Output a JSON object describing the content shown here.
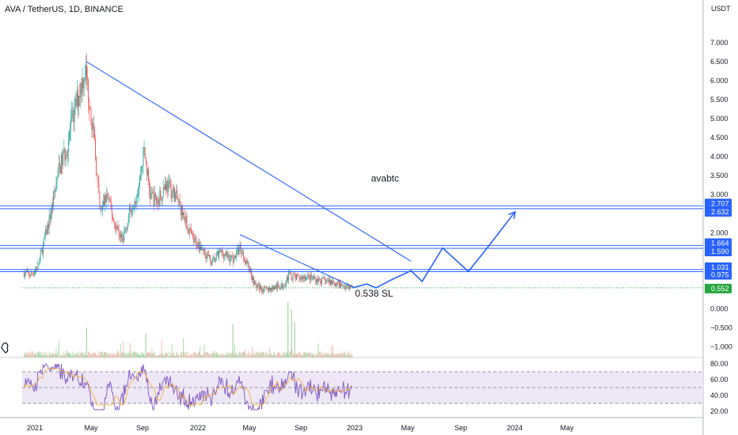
{
  "chart_data": {
    "type": "candlestick",
    "symbol": "AVA / TetherUS, 1D, BINANCE",
    "currency": "USDT",
    "y_ticks": [
      7.0,
      6.5,
      6.0,
      5.5,
      5.0,
      4.5,
      4.0,
      3.5,
      3.0,
      2.5,
      2.0,
      1.5,
      1.0,
      0.5,
      0.0,
      -0.5,
      -1.0
    ],
    "y_tick_labels": [
      "7.000",
      "6.500",
      "6.000",
      "5.500",
      "5.000",
      "4.500",
      "4.000",
      "3.500",
      "3.000",
      "2.500",
      "2.000",
      "1.500",
      "1.000",
      "0.500",
      "0.000",
      "−0.500",
      "−1.000"
    ],
    "ylim": [
      -1.2,
      7.5
    ],
    "x_labels": [
      "2021",
      "May",
      "Sep",
      "2022",
      "May",
      "Sep",
      "2023",
      "May",
      "Sep",
      "2024",
      "May"
    ],
    "price_path": [
      [
        "2020-12-05",
        0.95
      ],
      [
        "2020-12-20",
        0.88
      ],
      [
        "2021-01-05",
        1.1
      ],
      [
        "2021-01-20",
        1.8
      ],
      [
        "2021-02-05",
        2.6
      ],
      [
        "2021-02-20",
        3.6
      ],
      [
        "2021-03-10",
        4.2
      ],
      [
        "2021-03-25",
        5.0
      ],
      [
        "2021-04-10",
        5.8
      ],
      [
        "2021-04-22",
        6.3
      ],
      [
        "2021-05-05",
        5.2
      ],
      [
        "2021-05-15",
        4.0
      ],
      [
        "2021-05-25",
        2.5
      ],
      [
        "2021-06-10",
        3.0
      ],
      [
        "2021-06-25",
        2.3
      ],
      [
        "2021-07-15",
        1.8
      ],
      [
        "2021-08-01",
        2.6
      ],
      [
        "2021-08-20",
        3.2
      ],
      [
        "2021-09-01",
        4.2
      ],
      [
        "2021-09-15",
        3.0
      ],
      [
        "2021-10-01",
        2.8
      ],
      [
        "2021-10-20",
        3.3
      ],
      [
        "2021-11-10",
        3.0
      ],
      [
        "2021-12-01",
        2.4
      ],
      [
        "2021-12-20",
        1.8
      ],
      [
        "2022-01-10",
        1.6
      ],
      [
        "2022-02-01",
        1.2
      ],
      [
        "2022-02-20",
        1.5
      ],
      [
        "2022-03-20",
        1.3
      ],
      [
        "2022-04-05",
        1.6
      ],
      [
        "2022-04-25",
        1.1
      ],
      [
        "2022-05-10",
        0.6
      ],
      [
        "2022-06-01",
        0.5
      ],
      [
        "2022-06-20",
        0.55
      ],
      [
        "2022-07-10",
        0.6
      ],
      [
        "2022-07-25",
        0.9
      ],
      [
        "2022-08-10",
        0.8
      ],
      [
        "2022-09-01",
        0.85
      ],
      [
        "2022-10-01",
        0.75
      ],
      [
        "2022-11-01",
        0.7
      ],
      [
        "2022-11-20",
        0.6
      ],
      [
        "2022-12-15",
        0.56
      ]
    ],
    "rsi": {
      "y_ticks": [
        80,
        60,
        40,
        20
      ],
      "y_tick_labels": [
        "80.00",
        "60.00",
        "40.00",
        "20.00"
      ],
      "ylim": [
        15,
        85
      ],
      "band": [
        30,
        70
      ],
      "midline": 50
    },
    "trendlines": [
      {
        "from": [
          "2021-04-25",
          6.5
        ],
        "to": [
          "2023-04-25",
          1.25
        ]
      },
      {
        "from": [
          "2022-04-05",
          1.95
        ],
        "to": [
          "2022-12-20",
          0.55
        ]
      }
    ],
    "projection": [
      [
        "2022-12-15",
        0.55
      ],
      [
        "2023-01-15",
        0.65
      ],
      [
        "2023-02-05",
        0.55
      ],
      [
        "2023-03-15",
        0.78
      ],
      [
        "2023-04-25",
        1.0
      ],
      [
        "2023-05-20",
        0.72
      ],
      [
        "2023-07-05",
        1.6
      ],
      [
        "2023-09-01",
        0.98
      ],
      [
        "2023-10-20",
        1.7
      ],
      [
        "2023-12-15",
        2.55
      ]
    ],
    "horizontal_levels": [
      2.707,
      2.632,
      1.664,
      1.59,
      1.031,
      0.975
    ],
    "badges": [
      {
        "label": "2.707",
        "value": 2.707,
        "color": "#2962ff"
      },
      {
        "label": "2.632",
        "value": 2.632,
        "color": "#2962ff"
      },
      {
        "label": "1.664",
        "value": 1.664,
        "color": "#2962ff"
      },
      {
        "label": "1.590",
        "value": 1.59,
        "color": "#2962ff"
      },
      {
        "label": "1.031",
        "value": 1.031,
        "color": "#2962ff"
      },
      {
        "label": "0.975",
        "value": 0.975,
        "color": "#2962ff"
      },
      {
        "label": "0.552",
        "value": 0.552,
        "color": "#26a641"
      }
    ],
    "last_price": 0.552,
    "annotations": [
      {
        "text": "avabtc",
        "date": "2023-01-25",
        "value": 3.35
      },
      {
        "text": "0.538 SL",
        "date": "2022-12-20",
        "value": 0.32
      }
    ]
  },
  "colors": {
    "up": "#26a69a",
    "down": "#ef5350",
    "line": "#2962ff",
    "rsi": "#7e57c2",
    "rsi_band": "#ede7f6",
    "grid": "#131722",
    "price_line": "#26a641"
  }
}
